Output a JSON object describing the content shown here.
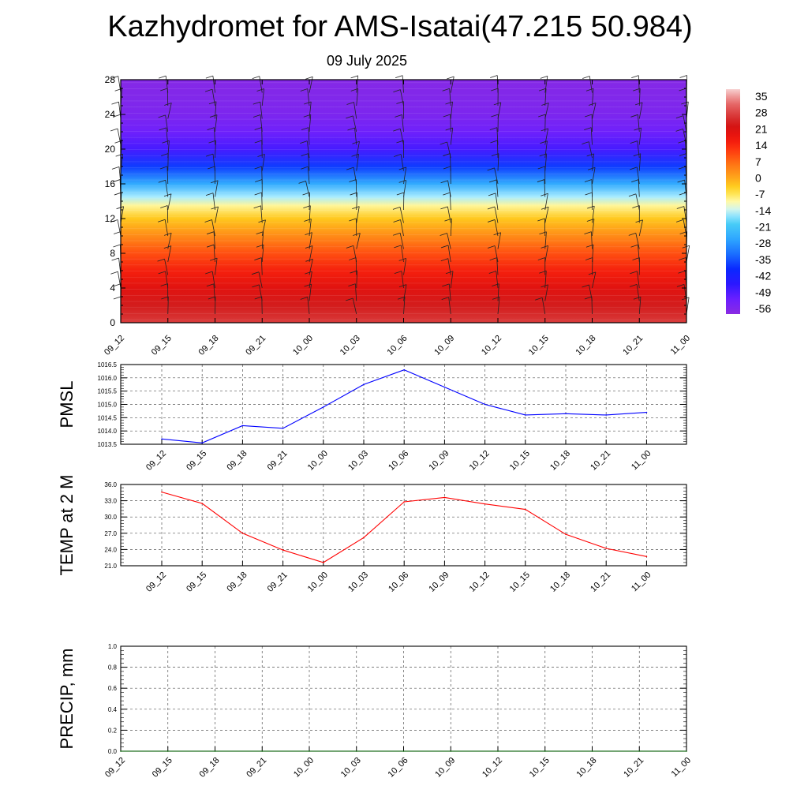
{
  "title": "Kazhydromet for AMS-Isatai(47.215 50.984)",
  "subtitle": "09 July 2025",
  "chart_data": [
    {
      "type": "heatmap",
      "title": "",
      "xlabel": "",
      "ylabel": "",
      "x_tick_labels": [
        "09_12",
        "09_15",
        "09_18",
        "09_21",
        "10_00",
        "10_03",
        "10_06",
        "10_09",
        "10_12",
        "10_15",
        "10_18",
        "10_21",
        "11_00"
      ],
      "y_tick_labels": [
        "0",
        "4",
        "8",
        "12",
        "16",
        "20",
        "24",
        "28"
      ],
      "ylim": [
        0,
        28
      ],
      "colorbar_labels": [
        "35",
        "28",
        "21",
        "14",
        "7",
        "0",
        "-7",
        "-14",
        "-21",
        "-28",
        "-35",
        "-42",
        "-49",
        "-56"
      ],
      "colorbar_range": [
        -63,
        42
      ],
      "level_temperature_profile": [
        {
          "level": 0,
          "value": 30
        },
        {
          "level": 2,
          "value": 26
        },
        {
          "level": 4,
          "value": 22
        },
        {
          "level": 6,
          "value": 17
        },
        {
          "level": 8,
          "value": 11
        },
        {
          "level": 10,
          "value": 4
        },
        {
          "level": 12,
          "value": -3
        },
        {
          "level": 13.5,
          "value": -10
        },
        {
          "level": 14.5,
          "value": -16
        },
        {
          "level": 16,
          "value": -27
        },
        {
          "level": 18,
          "value": -40
        },
        {
          "level": 20,
          "value": -52
        },
        {
          "level": 22,
          "value": -57
        },
        {
          "level": 24,
          "value": -60
        },
        {
          "level": 26,
          "value": -61
        },
        {
          "level": 28,
          "value": -62
        }
      ],
      "wind_barbs": "shown",
      "colors": {
        "high": "#ec9090",
        "low": "#8a2be2"
      }
    },
    {
      "type": "line",
      "ylabel": "PMSL",
      "x_tick_labels": [
        "09_12",
        "09_15",
        "09_18",
        "09_21",
        "10_00",
        "10_03",
        "10_06",
        "10_09",
        "10_12",
        "10_15",
        "10_18",
        "10_21",
        "11_00"
      ],
      "y_tick_labels": [
        "1013.5",
        "1014.0",
        "1014.5",
        "1015.0",
        "1015.5",
        "1016.0",
        "1016.5"
      ],
      "ylim": [
        1013.5,
        1016.5
      ],
      "series": [
        {
          "values": [
            1013.7,
            1013.55,
            1014.2,
            1014.1,
            1014.9,
            1015.75,
            1016.3,
            1015.65,
            1015.0,
            1014.6,
            1014.65,
            1014.6,
            1014.7
          ],
          "color": "#0000ff"
        }
      ],
      "grid": true
    },
    {
      "type": "line",
      "ylabel": "TEMP at 2 M",
      "x_tick_labels": [
        "09_12",
        "09_15",
        "09_18",
        "09_21",
        "10_00",
        "10_03",
        "10_06",
        "10_09",
        "10_12",
        "10_15",
        "10_18",
        "10_21",
        "11_00"
      ],
      "y_tick_labels": [
        "21.0",
        "24.0",
        "27.0",
        "30.0",
        "33.0",
        "36.0"
      ],
      "ylim": [
        21.0,
        36.0
      ],
      "series": [
        {
          "values": [
            34.6,
            32.5,
            27.0,
            23.9,
            21.6,
            26.2,
            32.8,
            33.6,
            32.4,
            31.4,
            26.8,
            24.2,
            22.7
          ],
          "color": "#ff0000"
        }
      ],
      "grid": true
    },
    {
      "type": "line",
      "ylabel": "PRECIP, mm",
      "x_tick_labels": [
        "09_12",
        "09_15",
        "09_18",
        "09_21",
        "10_00",
        "10_03",
        "10_06",
        "10_09",
        "10_12",
        "10_15",
        "10_18",
        "10_21",
        "11_00"
      ],
      "y_tick_labels": [
        "0.0",
        "0.2",
        "0.4",
        "0.6",
        "0.8",
        "1.0"
      ],
      "ylim": [
        0.0,
        1.0
      ],
      "series": [
        {
          "values": [
            0,
            0,
            0,
            0,
            0,
            0,
            0,
            0,
            0,
            0,
            0,
            0,
            0
          ],
          "color": "#006400"
        }
      ],
      "grid": true
    }
  ]
}
